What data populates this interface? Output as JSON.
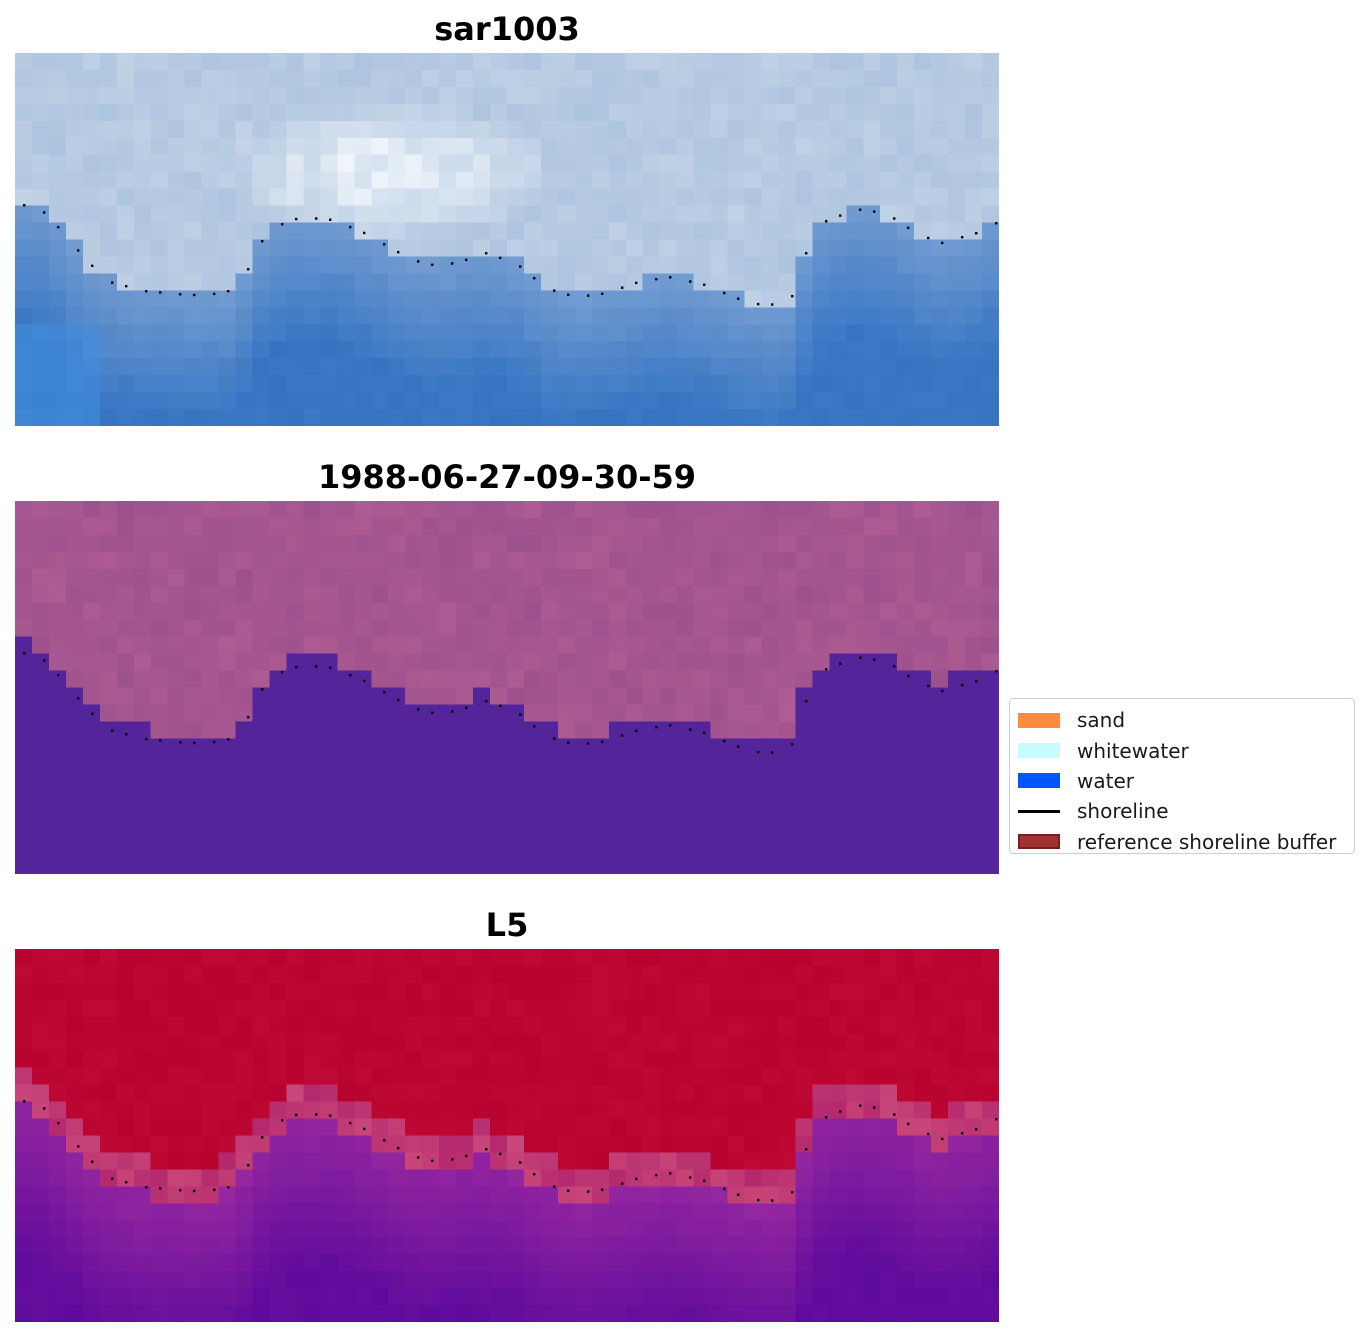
{
  "panels": [
    {
      "title": "sar1003",
      "style": "rgb"
    },
    {
      "title": "1988-06-27-09-30-59",
      "style": "classified"
    },
    {
      "title": "L5",
      "style": "index"
    }
  ],
  "legend": {
    "items": [
      {
        "label": "sand",
        "kind": "patch",
        "color": "#ff8c3a"
      },
      {
        "label": "whitewater",
        "kind": "patch",
        "color": "#c8fcfc"
      },
      {
        "label": "water",
        "kind": "patch",
        "color": "#0055ff"
      },
      {
        "label": "shoreline",
        "kind": "line",
        "color": "#000000"
      },
      {
        "label": "reference shoreline buffer",
        "kind": "patch",
        "color": "#a33232",
        "border": "#7a1f1f"
      }
    ]
  },
  "colors": {
    "water_rgb": "#3a78c6",
    "land_rgb": "#b8cbe2",
    "whitewater_rgb": "#f4f8fc",
    "classified_land": "#a35590",
    "classified_water": "#54249a",
    "index_high": "#b8022f",
    "index_low": "#5d0a9c",
    "shoreline_dots": "#000000"
  }
}
